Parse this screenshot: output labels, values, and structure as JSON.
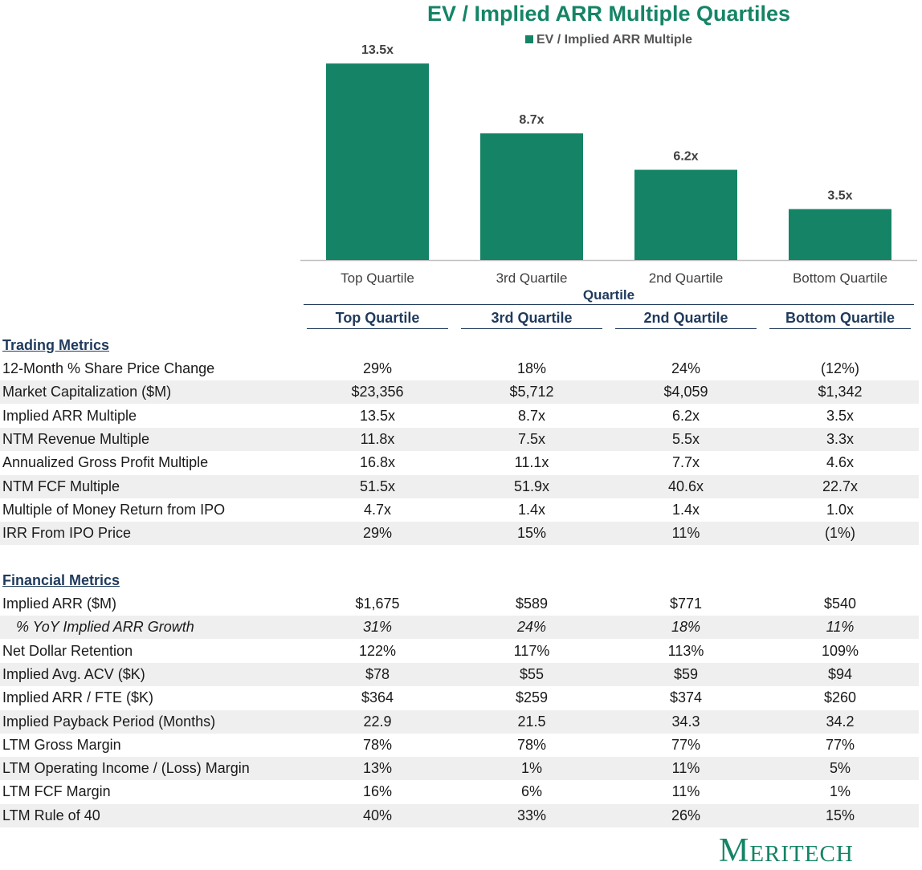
{
  "chart_data": {
    "type": "bar",
    "title": "EV / Implied ARR Multiple Quartiles",
    "xlabel": "Quartile",
    "ylabel": "",
    "legend": "EV / Implied ARR Multiple",
    "legend_position": "top-center",
    "categories": [
      "Top Quartile",
      "3rd Quartile",
      "2nd Quartile",
      "Bottom Quartile"
    ],
    "values": [
      13.5,
      8.7,
      6.2,
      3.5
    ],
    "data_labels": [
      "13.5x",
      "8.7x",
      "6.2x",
      "3.5x"
    ],
    "ylim": [
      0,
      15
    ],
    "grid": false,
    "bar_color": "#158466"
  },
  "table": {
    "columns": [
      "Top Quartile",
      "3rd Quartile",
      "2nd Quartile",
      "Bottom Quartile"
    ],
    "trading_header": "Trading Metrics",
    "trading_rows": [
      {
        "label": "12-Month % Share Price Change",
        "values": [
          "29%",
          "18%",
          "24%",
          "(12%)"
        ]
      },
      {
        "label": "Market Capitalization ($M)",
        "values": [
          "$23,356",
          "$5,712",
          "$4,059",
          "$1,342"
        ]
      },
      {
        "label": "Implied ARR Multiple",
        "values": [
          "13.5x",
          "8.7x",
          "6.2x",
          "3.5x"
        ]
      },
      {
        "label": "NTM Revenue Multiple",
        "values": [
          "11.8x",
          "7.5x",
          "5.5x",
          "3.3x"
        ]
      },
      {
        "label": "Annualized Gross Profit Multiple",
        "values": [
          "16.8x",
          "11.1x",
          "7.7x",
          "4.6x"
        ]
      },
      {
        "label": "NTM FCF Multiple",
        "values": [
          "51.5x",
          "51.9x",
          "40.6x",
          "22.7x"
        ]
      },
      {
        "label": "Multiple of Money Return from IPO",
        "values": [
          "4.7x",
          "1.4x",
          "1.4x",
          "1.0x"
        ]
      },
      {
        "label": "IRR From IPO Price",
        "values": [
          "29%",
          "15%",
          "11%",
          "(1%)"
        ]
      }
    ],
    "financial_header": "Financial Metrics",
    "financial_rows": [
      {
        "label": "Implied ARR ($M)",
        "values": [
          "$1,675",
          "$589",
          "$771",
          "$540"
        ]
      },
      {
        "label": "% YoY Implied ARR Growth",
        "values": [
          "31%",
          "24%",
          "18%",
          "11%"
        ],
        "italic": true
      },
      {
        "label": "Net Dollar Retention",
        "values": [
          "122%",
          "117%",
          "113%",
          "109%"
        ]
      },
      {
        "label": "Implied Avg. ACV ($K)",
        "values": [
          "$78",
          "$55",
          "$59",
          "$94"
        ]
      },
      {
        "label": "Implied ARR / FTE ($K)",
        "values": [
          "$364",
          "$259",
          "$374",
          "$260"
        ]
      },
      {
        "label": "Implied Payback Period (Months)",
        "values": [
          "22.9",
          "21.5",
          "34.3",
          "34.2"
        ]
      },
      {
        "label": "LTM Gross Margin",
        "values": [
          "78%",
          "78%",
          "77%",
          "77%"
        ]
      },
      {
        "label": "LTM Operating Income / (Loss) Margin",
        "values": [
          "13%",
          "1%",
          "11%",
          "5%"
        ]
      },
      {
        "label": "LTM FCF Margin",
        "values": [
          "16%",
          "6%",
          "11%",
          "1%"
        ]
      },
      {
        "label": "LTM Rule of 40",
        "values": [
          "40%",
          "33%",
          "26%",
          "15%"
        ]
      }
    ]
  },
  "logo": "Meritech"
}
